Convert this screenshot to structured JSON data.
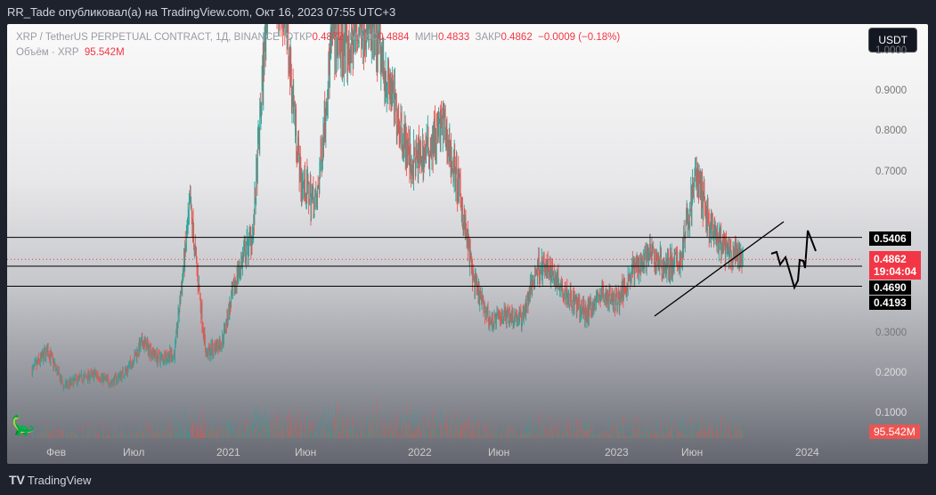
{
  "header": {
    "published": "RR_Tade опубликовал(а) на TradingView.com, Окт 16, 2023 07:55 UTC+3"
  },
  "legend": {
    "symbol": "XRP / TetherUS PERPETUAL CONTRACT, 1Д, BINANCE",
    "open_label": "ОТКР",
    "open": "0.4872",
    "high_label": "МАКС",
    "high": "0.4884",
    "low_label": "МИН",
    "low": "0.4833",
    "close_label": "ЗАКР",
    "close": "0.4862",
    "change": "−0.0009 (−0.18%)",
    "volume_label": "Объём · XRP",
    "volume": "95.542M"
  },
  "currency_button": "USDT",
  "price_tags": {
    "level_top": "0.5406",
    "last": "0.4862",
    "countdown": "19:04:04",
    "level_mid": "0.4690",
    "level_low": "0.4193",
    "volume": "95.542M"
  },
  "footer": {
    "brand": "TradingView"
  },
  "colors": {
    "up": "#26a69a",
    "down": "#ef5350",
    "last_tag": "#f23645"
  },
  "chart_data": {
    "type": "candlestick",
    "title": "XRP / TetherUS PERPETUAL CONTRACT, 1Д, BINANCE",
    "y_ticks": [
      "1.0000",
      "0.9000",
      "0.8000",
      "0.7000",
      "0.3000",
      "0.2000",
      "0.1000"
    ],
    "x_ticks": [
      "Фев",
      "Июл",
      "2021",
      "Июн",
      "2022",
      "Июн",
      "2023",
      "Июн",
      "2024"
    ],
    "ylim": [
      0.08,
      1.0
    ],
    "monthly_close": {
      "months": [
        "2020-01",
        "2020-02",
        "2020-03",
        "2020-04",
        "2020-05",
        "2020-06",
        "2020-07",
        "2020-08",
        "2020-09",
        "2020-10",
        "2020-11",
        "2020-12",
        "2021-01",
        "2021-02",
        "2021-03",
        "2021-04",
        "2021-05",
        "2021-06",
        "2021-07",
        "2021-08",
        "2021-09",
        "2021-10",
        "2021-11",
        "2021-12",
        "2022-01",
        "2022-02",
        "2022-03",
        "2022-04",
        "2022-05",
        "2022-06",
        "2022-07",
        "2022-08",
        "2022-09",
        "2022-10",
        "2022-11",
        "2022-12",
        "2023-01",
        "2023-02",
        "2023-03",
        "2023-04",
        "2023-05",
        "2023-06",
        "2023-07",
        "2023-08",
        "2023-09",
        "2023-10"
      ],
      "values": [
        0.21,
        0.26,
        0.17,
        0.19,
        0.2,
        0.18,
        0.21,
        0.28,
        0.24,
        0.25,
        0.62,
        0.25,
        0.28,
        0.45,
        0.56,
        1.2,
        1.1,
        0.68,
        0.62,
        1.05,
        1.0,
        1.08,
        1.0,
        0.86,
        0.72,
        0.76,
        0.82,
        0.66,
        0.42,
        0.33,
        0.35,
        0.34,
        0.47,
        0.45,
        0.39,
        0.35,
        0.4,
        0.38,
        0.46,
        0.5,
        0.47,
        0.48,
        0.7,
        0.55,
        0.5,
        0.4862
      ]
    },
    "horizontal_levels": [
      0.5406,
      0.469,
      0.4193
    ],
    "last_price": 0.4862,
    "volume_last": "95.542M"
  }
}
